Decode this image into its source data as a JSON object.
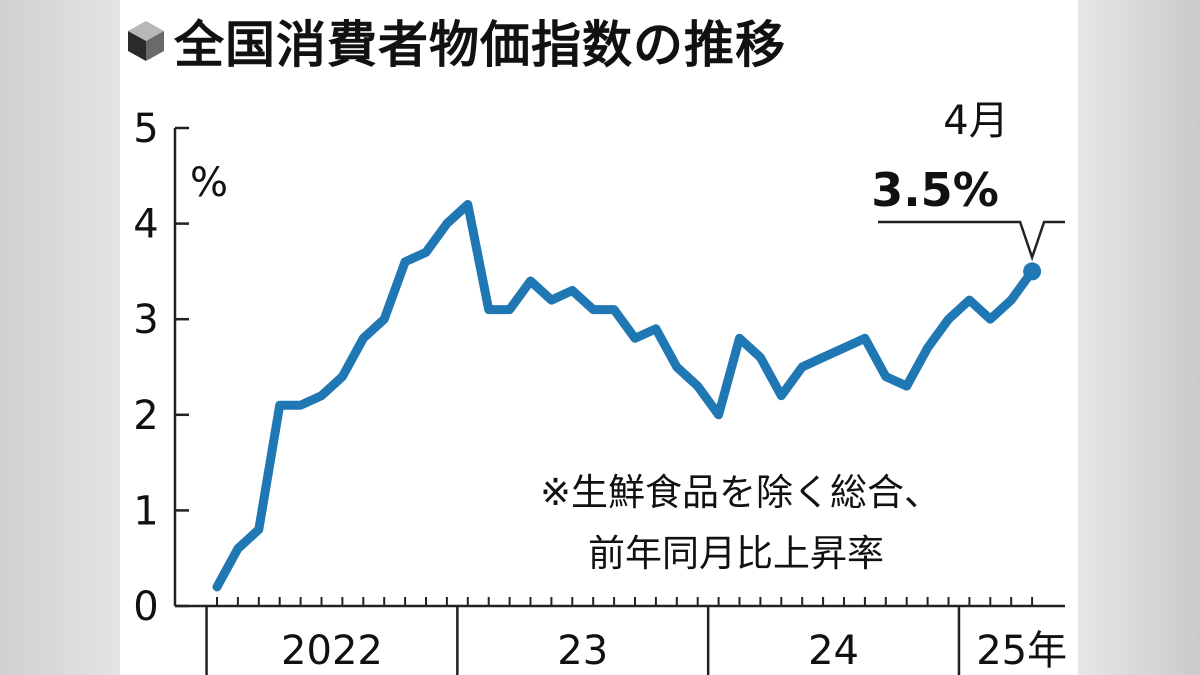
{
  "title": "全国消費者物価指数の推移",
  "chart_data": {
    "type": "line",
    "title": "全国消費者物価指数の推移",
    "ylabel": "%",
    "ylim": [
      0,
      5
    ],
    "yticks": [
      "0",
      "1",
      "2",
      "3",
      "4",
      "5"
    ],
    "xlabels": [
      "2022",
      "23",
      "24",
      "25年"
    ],
    "series": [
      {
        "color": "#1f78b4",
        "x": [
          "2022-01",
          "2022-02",
          "2022-03",
          "2022-04",
          "2022-05",
          "2022-06",
          "2022-07",
          "2022-08",
          "2022-09",
          "2022-10",
          "2022-11",
          "2022-12",
          "2023-01",
          "2023-02",
          "2023-03",
          "2023-04",
          "2023-05",
          "2023-06",
          "2023-07",
          "2023-08",
          "2023-09",
          "2023-10",
          "2023-11",
          "2023-12",
          "2024-01",
          "2024-02",
          "2024-03",
          "2024-04",
          "2024-05",
          "2024-06",
          "2024-07",
          "2024-08",
          "2024-09",
          "2024-10",
          "2024-11",
          "2024-12",
          "2025-01",
          "2025-02",
          "2025-03",
          "2025-04"
        ],
        "values": [
          0.2,
          0.6,
          0.8,
          2.1,
          2.1,
          2.2,
          2.4,
          2.8,
          3.0,
          3.6,
          3.7,
          4.0,
          4.2,
          3.1,
          3.1,
          3.4,
          3.2,
          3.3,
          3.1,
          3.1,
          2.8,
          2.9,
          2.5,
          2.3,
          2.0,
          2.8,
          2.6,
          2.2,
          2.5,
          2.6,
          2.7,
          2.8,
          2.4,
          2.3,
          2.7,
          3.0,
          3.2,
          3.0,
          3.2,
          3.5
        ]
      }
    ],
    "annotation": {
      "month": "4月",
      "value": "3.5%"
    },
    "note": [
      "※生鮮食品を除く総合、",
      "前年同月比上昇率"
    ]
  }
}
